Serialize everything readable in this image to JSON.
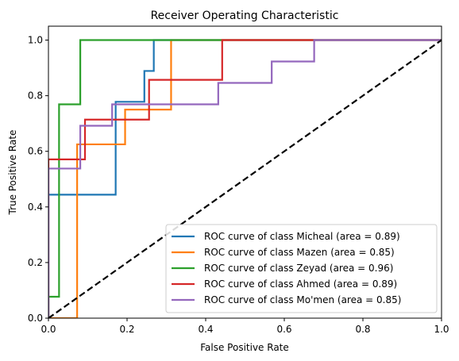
{
  "chart_data": {
    "type": "line",
    "title": "Receiver Operating Characteristic",
    "xlabel": "False Positive Rate",
    "ylabel": "True Positive Rate",
    "xlim": [
      0.0,
      1.0
    ],
    "ylim": [
      0.0,
      1.05
    ],
    "x_ticks": [
      0.0,
      0.2,
      0.4,
      0.6,
      0.8,
      1.0
    ],
    "x_tick_labels": [
      "0.0",
      "0.2",
      "0.4",
      "0.6",
      "0.8",
      "1.0"
    ],
    "y_ticks": [
      0.0,
      0.2,
      0.4,
      0.6,
      0.8,
      1.0
    ],
    "y_tick_labels": [
      "0.0",
      "0.2",
      "0.4",
      "0.6",
      "0.8",
      "1.0"
    ],
    "grid": false,
    "legend_position": "lower-right",
    "series": [
      {
        "name": "ROC curve of class Micheal (area = 0.89)",
        "color": "#1f77b4",
        "x": [
          0.0,
          0.0,
          0.171,
          0.171,
          0.244,
          0.244,
          0.268,
          0.268,
          1.0
        ],
        "y": [
          0.0,
          0.444,
          0.444,
          0.778,
          0.778,
          0.889,
          0.889,
          1.0,
          1.0
        ]
      },
      {
        "name": "ROC curve of class Mazen (area = 0.85)",
        "color": "#ff7f0e",
        "x": [
          0.0,
          0.073,
          0.073,
          0.195,
          0.195,
          0.312,
          0.312,
          1.0
        ],
        "y": [
          0.0,
          0.0,
          0.625,
          0.625,
          0.75,
          0.75,
          1.0,
          1.0
        ]
      },
      {
        "name": "ROC curve of class Zeyad (area = 0.96)",
        "color": "#2ca02c",
        "x": [
          0.0,
          0.0,
          0.027,
          0.027,
          0.081,
          0.081,
          1.0
        ],
        "y": [
          0.0,
          0.077,
          0.077,
          0.769,
          0.769,
          1.0,
          1.0
        ]
      },
      {
        "name": "ROC curve of class Ahmed (area = 0.89)",
        "color": "#d62728",
        "x": [
          0.0,
          0.0,
          0.093,
          0.093,
          0.256,
          0.256,
          0.442,
          0.442,
          1.0
        ],
        "y": [
          0.0,
          0.571,
          0.571,
          0.714,
          0.714,
          0.857,
          0.857,
          1.0,
          1.0
        ]
      },
      {
        "name": "ROC curve of class Mo'men (area = 0.85)",
        "color": "#9467bd",
        "x": [
          0.0,
          0.0,
          0.081,
          0.081,
          0.162,
          0.162,
          0.432,
          0.432,
          0.568,
          0.568,
          0.676,
          0.676,
          1.0
        ],
        "y": [
          0.0,
          0.538,
          0.538,
          0.692,
          0.692,
          0.769,
          0.769,
          0.846,
          0.846,
          0.923,
          0.923,
          1.0,
          1.0
        ]
      }
    ],
    "reference_line": {
      "x": [
        0.0,
        1.0
      ],
      "y": [
        0.0,
        1.0
      ],
      "color": "#000000",
      "style": "dashed"
    }
  }
}
